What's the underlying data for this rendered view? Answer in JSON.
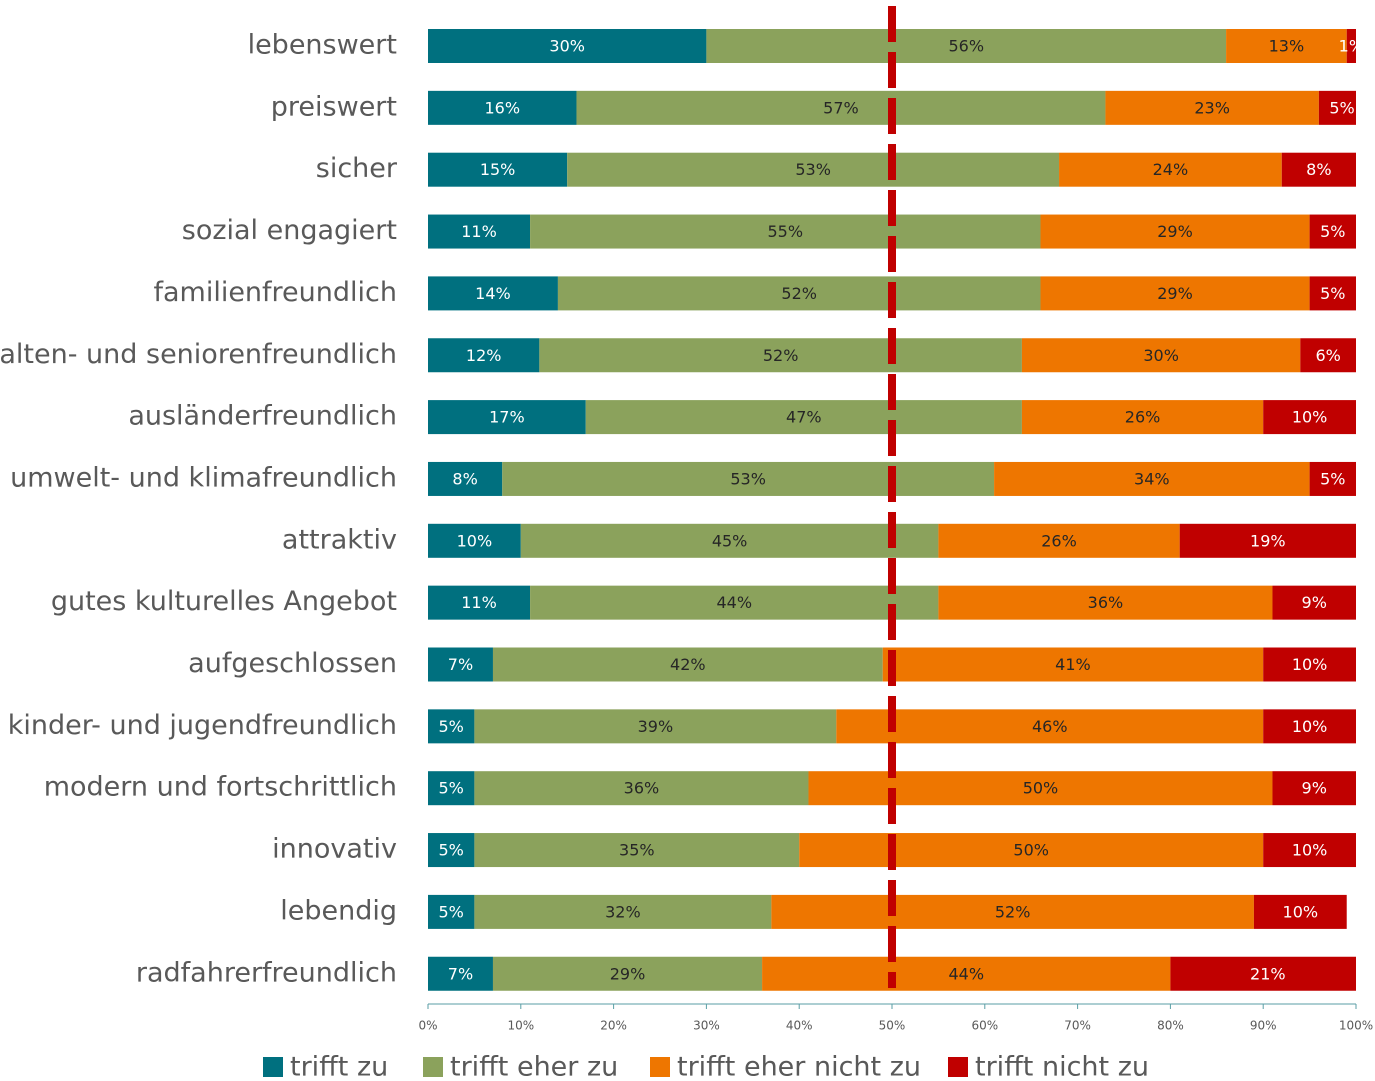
{
  "chart_data": {
    "type": "stacked_bar_horizontal",
    "categories": [
      "lebenswert",
      "preiswert",
      "sicher",
      "sozial engagiert",
      "familienfreundlich",
      "alten- und seniorenfreundlich",
      "ausländerfreundlich",
      "umwelt- und klimafreundlich",
      "attraktiv",
      "gutes kulturelles Angebot",
      "aufgeschlossen",
      "kinder- und jugendfreundlich",
      "modern und fortschrittlich",
      "innovativ",
      "lebendig",
      "radfahrerfreundlich"
    ],
    "series": [
      {
        "name": "trifft zu",
        "color": "#00707f",
        "label_color": "#ffffff",
        "values": [
          30,
          16,
          15,
          11,
          14,
          12,
          17,
          8,
          10,
          11,
          7,
          5,
          5,
          5,
          5,
          7
        ],
        "value_labels": [
          "30%",
          "16%",
          "15%",
          "11%",
          "14%",
          "12%",
          "17%",
          "8%",
          "10%",
          "11%",
          "7%",
          "5%",
          "5%",
          "5%",
          "5%",
          "7%"
        ]
      },
      {
        "name": "trifft eher zu",
        "color": "#8ba25c",
        "label_color": "#262626",
        "values": [
          56,
          57,
          53,
          55,
          52,
          52,
          47,
          53,
          45,
          44,
          42,
          39,
          36,
          35,
          32,
          29
        ],
        "value_labels": [
          "56%",
          "57%",
          "53%",
          "55%",
          "52%",
          "52%",
          "47%",
          "53%",
          "45%",
          "44%",
          "42%",
          "39%",
          "36%",
          "35%",
          "32%",
          "29%"
        ]
      },
      {
        "name": "trifft eher nicht zu",
        "color": "#ee7600",
        "label_color": "#262626",
        "values": [
          13,
          23,
          24,
          29,
          29,
          30,
          26,
          34,
          26,
          36,
          41,
          46,
          50,
          50,
          52,
          44
        ],
        "value_labels": [
          "13%",
          "23%",
          "24%",
          "29%",
          "29%",
          "30%",
          "26%",
          "34%",
          "26%",
          "36%",
          "41%",
          "46%",
          "50%",
          "50%",
          "52%",
          "44%"
        ]
      },
      {
        "name": "trifft nicht zu",
        "color": "#c00000",
        "label_color": "#ffffff",
        "values": [
          1,
          5,
          8,
          5,
          5,
          6,
          10,
          5,
          19,
          9,
          10,
          10,
          9,
          10,
          10,
          21
        ],
        "value_labels": [
          "1%",
          "5%",
          "8%",
          "5%",
          "5%",
          "6%",
          "10%",
          "5%",
          "19%",
          "9%",
          "10%",
          "10%",
          "9%",
          "10%",
          "10%",
          "21%"
        ]
      }
    ],
    "xlim": [
      0,
      100
    ],
    "xticks": [
      {
        "value": 0,
        "label": "0%"
      },
      {
        "value": 10,
        "label": "10%"
      },
      {
        "value": 20,
        "label": "20%"
      },
      {
        "value": 30,
        "label": "30%"
      },
      {
        "value": 40,
        "label": "40%"
      },
      {
        "value": 50,
        "label": "50%"
      },
      {
        "value": 60,
        "label": "60%"
      },
      {
        "value": 70,
        "label": "70%"
      },
      {
        "value": 80,
        "label": "80%"
      },
      {
        "value": 90,
        "label": "90%"
      },
      {
        "value": 100,
        "label": "100%"
      }
    ],
    "reference_line": {
      "value": 50,
      "color": "#c00000"
    },
    "legend": "bottom"
  }
}
